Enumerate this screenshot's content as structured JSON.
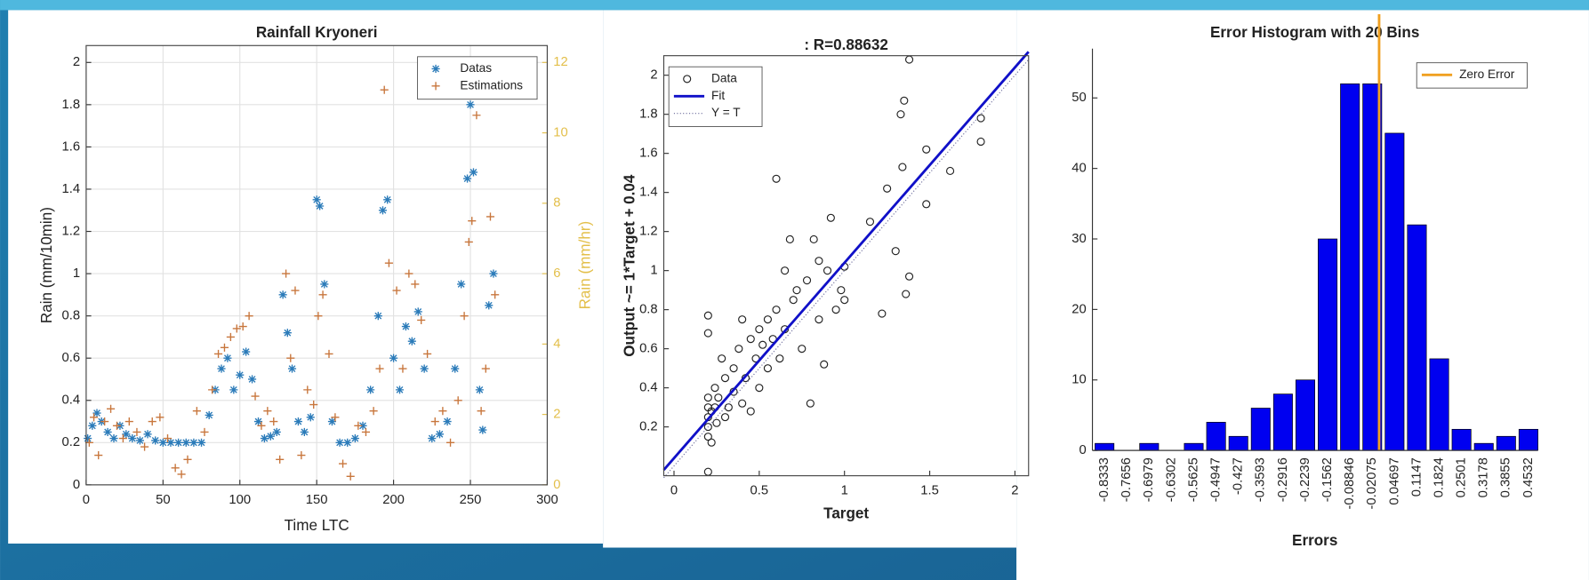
{
  "chart_data": [
    {
      "type": "scatter",
      "title": "Rainfall Kryoneri",
      "xlabel": "Time LTC",
      "ylabel": "Rain (mm/10min)",
      "y2label": "Rain (mm/hr)",
      "xlim": [
        0,
        300
      ],
      "xticks": [
        0,
        50,
        100,
        150,
        200,
        250,
        300
      ],
      "ylim": [
        0,
        2.08
      ],
      "yticks": [
        0,
        0.2,
        0.4,
        0.6,
        0.8,
        1,
        1.2,
        1.4,
        1.6,
        1.8,
        2
      ],
      "y2lim": [
        0,
        12.48
      ],
      "y2ticks": [
        0,
        2,
        4,
        6,
        8,
        10,
        12
      ],
      "y2color": "#e3bf4a",
      "grid": true,
      "box": true,
      "legend": "upper right",
      "series": [
        {
          "name": "Datas",
          "color": "#2b7bb9",
          "marker": "star",
          "x": [
            1,
            4,
            7,
            10,
            14,
            18,
            22,
            26,
            30,
            35,
            40,
            45,
            50,
            55,
            60,
            65,
            70,
            75,
            80,
            84,
            88,
            92,
            96,
            100,
            104,
            108,
            112,
            116,
            120,
            124,
            128,
            131,
            134,
            138,
            142,
            146,
            150,
            152,
            155,
            160,
            165,
            170,
            175,
            180,
            185,
            190,
            193,
            196,
            200,
            204,
            208,
            212,
            216,
            220,
            225,
            230,
            235,
            240,
            244,
            248,
            250,
            252,
            256,
            258,
            262,
            265
          ],
          "values": [
            0.22,
            0.28,
            0.34,
            0.3,
            0.25,
            0.22,
            0.28,
            0.24,
            0.22,
            0.21,
            0.24,
            0.21,
            0.2,
            0.2,
            0.2,
            0.2,
            0.2,
            0.2,
            0.33,
            0.45,
            0.55,
            0.6,
            0.45,
            0.52,
            0.63,
            0.5,
            0.3,
            0.22,
            0.23,
            0.25,
            0.9,
            0.72,
            0.55,
            0.3,
            0.25,
            0.32,
            1.35,
            1.32,
            0.95,
            0.3,
            0.2,
            0.2,
            0.22,
            0.28,
            0.45,
            0.8,
            1.3,
            1.35,
            0.6,
            0.45,
            0.75,
            0.68,
            0.82,
            0.55,
            0.22,
            0.24,
            0.3,
            0.55,
            0.95,
            1.45,
            1.8,
            1.48,
            0.45,
            0.26,
            0.85,
            1.0
          ]
        },
        {
          "name": "Estimations",
          "color": "#c8763c",
          "marker": "plus",
          "x": [
            2,
            5,
            8,
            12,
            16,
            20,
            24,
            28,
            33,
            38,
            43,
            48,
            53,
            58,
            62,
            66,
            72,
            77,
            82,
            86,
            90,
            94,
            98,
            102,
            106,
            110,
            114,
            118,
            122,
            126,
            130,
            133,
            136,
            140,
            144,
            148,
            151,
            154,
            158,
            162,
            167,
            172,
            177,
            182,
            187,
            191,
            194,
            197,
            202,
            206,
            210,
            214,
            218,
            222,
            227,
            232,
            237,
            242,
            246,
            249,
            251,
            254,
            257,
            260,
            263,
            266
          ],
          "values": [
            0.2,
            0.32,
            0.14,
            0.3,
            0.36,
            0.28,
            0.22,
            0.3,
            0.25,
            0.18,
            0.3,
            0.32,
            0.22,
            0.08,
            0.05,
            0.12,
            0.35,
            0.25,
            0.45,
            0.62,
            0.65,
            0.7,
            0.74,
            0.75,
            0.8,
            0.42,
            0.28,
            0.35,
            0.3,
            0.12,
            1.0,
            0.6,
            0.92,
            0.14,
            0.45,
            0.38,
            0.8,
            0.9,
            0.62,
            0.32,
            0.1,
            0.04,
            0.28,
            0.25,
            0.35,
            0.55,
            1.87,
            1.05,
            0.92,
            0.55,
            1.0,
            0.95,
            0.78,
            0.62,
            0.3,
            0.35,
            0.2,
            0.4,
            0.8,
            1.15,
            1.25,
            1.75,
            0.35,
            0.55,
            1.27,
            0.9
          ]
        }
      ]
    },
    {
      "type": "scatter",
      "title": ": R=0.88632",
      "xlabel": "Target",
      "ylabel": "Output ~= 1*Target + 0.04",
      "xlim": [
        -0.06,
        2.08
      ],
      "xticks": [
        0,
        0.5,
        1,
        1.5,
        2
      ],
      "ylim": [
        -0.05,
        2.1
      ],
      "yticks": [
        0.2,
        0.4,
        0.6,
        0.8,
        1,
        1.2,
        1.4,
        1.6,
        1.8,
        2
      ],
      "grid": false,
      "box": true,
      "legend": "upper left",
      "series": [
        {
          "name": "Data",
          "color": "#222222",
          "marker": "circle",
          "x": [
            0.2,
            0.2,
            0.2,
            0.2,
            0.2,
            0.2,
            0.2,
            0.2,
            0.22,
            0.22,
            0.24,
            0.24,
            0.25,
            0.26,
            0.28,
            0.3,
            0.3,
            0.32,
            0.35,
            0.35,
            0.38,
            0.4,
            0.4,
            0.42,
            0.45,
            0.45,
            0.48,
            0.5,
            0.5,
            0.52,
            0.55,
            0.55,
            0.58,
            0.6,
            0.6,
            0.62,
            0.65,
            0.65,
            0.68,
            0.7,
            0.72,
            0.75,
            0.78,
            0.8,
            0.82,
            0.85,
            0.85,
            0.88,
            0.9,
            0.92,
            0.95,
            0.98,
            1.0,
            1.0,
            1.15,
            1.22,
            1.25,
            1.3,
            1.33,
            1.34,
            1.35,
            1.36,
            1.38,
            1.38,
            1.48,
            1.48,
            1.62,
            1.8,
            1.8
          ],
          "values": [
            0.2,
            0.25,
            0.3,
            0.15,
            0.35,
            0.68,
            0.77,
            -0.03,
            0.28,
            0.12,
            0.3,
            0.4,
            0.22,
            0.35,
            0.55,
            0.25,
            0.45,
            0.3,
            0.38,
            0.5,
            0.6,
            0.32,
            0.75,
            0.45,
            0.28,
            0.65,
            0.55,
            0.7,
            0.4,
            0.62,
            0.75,
            0.5,
            0.65,
            1.47,
            0.8,
            0.55,
            1.0,
            0.7,
            1.16,
            0.85,
            0.9,
            0.6,
            0.95,
            0.32,
            1.16,
            0.75,
            1.05,
            0.52,
            1.0,
            1.27,
            0.8,
            0.9,
            1.02,
            0.85,
            1.25,
            0.78,
            1.42,
            1.1,
            1.8,
            1.53,
            1.87,
            0.88,
            0.97,
            2.08,
            1.62,
            1.34,
            1.51,
            1.78,
            1.66
          ]
        },
        {
          "name": "Fit",
          "color": "#1010c8",
          "dash": "solid",
          "x": [
            -0.06,
            2.08
          ],
          "values": [
            -0.02,
            2.12
          ]
        },
        {
          "name": "Y = T",
          "color": "#6a6a9a",
          "dash": "dotted",
          "x": [
            -0.06,
            2.08
          ],
          "values": [
            -0.06,
            2.08
          ]
        }
      ]
    },
    {
      "type": "histogram",
      "title": "Error Histogram with 20 Bins",
      "xlabel": "Errors",
      "xlim": [
        -0.87,
        0.48
      ],
      "xtick_rotation": 90,
      "x": [
        -0.8333,
        -0.7656,
        -0.6979,
        -0.6302,
        -0.5625,
        -0.4947,
        -0.427,
        -0.3593,
        -0.2916,
        -0.2239,
        -0.1562,
        -0.08846,
        -0.02075,
        0.04697,
        0.1147,
        0.1824,
        0.2501,
        0.3178,
        0.3855,
        0.4532
      ],
      "values": [
        1,
        0,
        1,
        0,
        1,
        4,
        2,
        6,
        8,
        10,
        30,
        52,
        52,
        45,
        32,
        13,
        3,
        1,
        2,
        3
      ],
      "color": "#0000f0",
      "ylim": [
        0,
        57
      ],
      "yticks": [
        0,
        10,
        20,
        30,
        40,
        50
      ],
      "grid": false,
      "box": false,
      "legend": "upper right",
      "vlines": [
        {
          "name": "Zero Error",
          "color": "#f0a020",
          "x": 0
        }
      ]
    }
  ]
}
